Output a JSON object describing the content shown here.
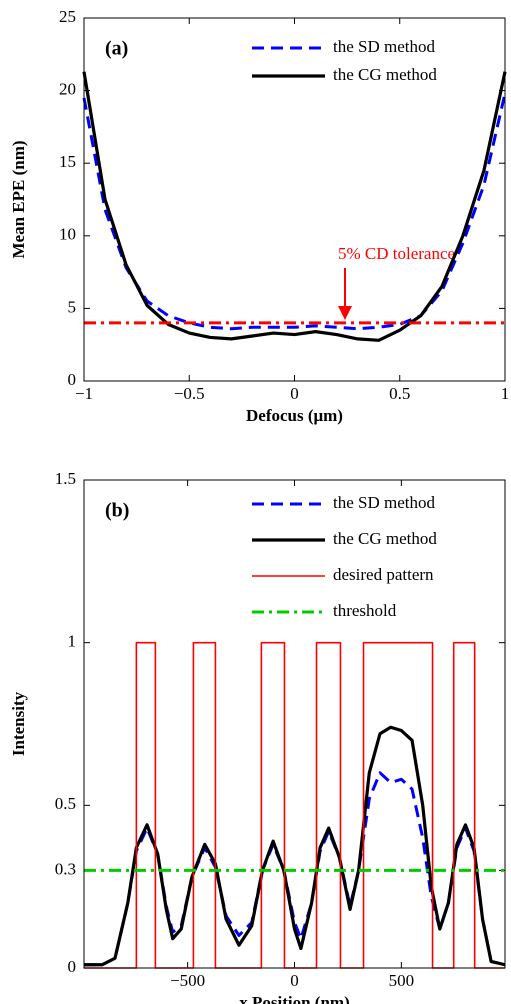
{
  "chart_data": [
    {
      "type": "line",
      "panel_label": "(a)",
      "xlabel": "Defocus (μm)",
      "ylabel": "Mean EPE (nm)",
      "x": [
        -1,
        -0.9,
        -0.8,
        -0.7,
        -0.6,
        -0.5,
        -0.4,
        -0.3,
        -0.2,
        -0.1,
        0,
        0.1,
        0.2,
        0.3,
        0.4,
        0.5,
        0.6,
        0.7,
        0.8,
        0.9,
        1
      ],
      "series": [
        {
          "name": "the SD method",
          "color": "#0000ff",
          "style": "dashed",
          "values": [
            19.5,
            11.8,
            7.8,
            5.5,
            4.5,
            4.0,
            3.7,
            3.6,
            3.7,
            3.7,
            3.7,
            3.8,
            3.7,
            3.6,
            3.7,
            3.9,
            4.5,
            6.2,
            9.5,
            13.5,
            19.8
          ]
        },
        {
          "name": "the CG method",
          "color": "#000000",
          "style": "solid",
          "values": [
            21.3,
            12.5,
            8.0,
            5.2,
            3.9,
            3.3,
            3.0,
            2.9,
            3.1,
            3.3,
            3.2,
            3.4,
            3.2,
            2.9,
            2.8,
            3.5,
            4.5,
            6.5,
            10,
            14.5,
            21.3
          ]
        }
      ],
      "reference_line": {
        "value": 4,
        "color": "#ff0000",
        "style": "dashdot"
      },
      "annotation": "5% CD tolerance",
      "xlim": [
        -1,
        1
      ],
      "ylim": [
        0,
        25
      ],
      "xticks": [
        {
          "value": -1,
          "label": "−1"
        },
        {
          "value": -0.5,
          "label": "−0.5"
        },
        0,
        0.5,
        1
      ],
      "yticks": [
        0,
        5,
        10,
        15,
        20,
        25
      ]
    },
    {
      "type": "line",
      "panel_label": "(b)",
      "xlabel": "x Position (nm)",
      "ylabel": "Intensity",
      "x": [
        -985,
        -900,
        -840,
        -780,
        -740,
        -690,
        -640,
        -600,
        -570,
        -530,
        -480,
        -420,
        -370,
        -320,
        -260,
        -200,
        -150,
        -100,
        -50,
        0,
        30,
        80,
        120,
        160,
        210,
        260,
        300,
        350,
        400,
        450,
        500,
        550,
        600,
        640,
        680,
        720,
        760,
        800,
        840,
        880,
        920,
        985
      ],
      "series": [
        {
          "name": "the SD method",
          "color": "#0000ff",
          "style": "dashed",
          "values": [
            0.01,
            0.01,
            0.03,
            0.2,
            0.36,
            0.43,
            0.35,
            0.19,
            0.11,
            0.13,
            0.28,
            0.37,
            0.31,
            0.16,
            0.1,
            0.14,
            0.3,
            0.38,
            0.3,
            0.14,
            0.09,
            0.2,
            0.36,
            0.42,
            0.34,
            0.19,
            0.3,
            0.52,
            0.6,
            0.57,
            0.58,
            0.55,
            0.4,
            0.22,
            0.12,
            0.2,
            0.37,
            0.43,
            0.36,
            0.15,
            0.02,
            0.01
          ]
        },
        {
          "name": "the CG method",
          "color": "#000000",
          "style": "solid",
          "values": [
            0.01,
            0.01,
            0.03,
            0.2,
            0.37,
            0.44,
            0.35,
            0.18,
            0.09,
            0.12,
            0.28,
            0.38,
            0.32,
            0.15,
            0.07,
            0.13,
            0.3,
            0.39,
            0.3,
            0.12,
            0.06,
            0.2,
            0.37,
            0.43,
            0.34,
            0.18,
            0.3,
            0.6,
            0.72,
            0.74,
            0.73,
            0.7,
            0.5,
            0.25,
            0.12,
            0.2,
            0.38,
            0.44,
            0.37,
            0.15,
            0.02,
            0.01
          ]
        },
        {
          "name": "desired pattern",
          "color": "#ff0000",
          "style": "thin",
          "x": [
            -985,
            -740,
            -740,
            -651,
            -651,
            -473,
            -473,
            -370,
            -370,
            -155,
            -155,
            -47,
            -47,
            103,
            103,
            215,
            215,
            323,
            323,
            646,
            646,
            745,
            745,
            843,
            843,
            985
          ],
          "values": [
            0,
            0,
            1,
            1,
            0,
            0,
            1,
            1,
            0,
            0,
            1,
            1,
            0,
            0,
            1,
            1,
            0,
            0,
            1,
            1,
            0,
            0,
            1,
            1,
            0,
            0
          ]
        }
      ],
      "threshold": {
        "name": "threshold",
        "value": 0.3,
        "color": "#00cc00",
        "style": "dashdot"
      },
      "xlim": [
        -985,
        985
      ],
      "ylim": [
        0,
        1.5
      ],
      "xticks": [
        {
          "value": -500,
          "label": "−500"
        },
        0,
        500
      ],
      "yticks": [
        0,
        0.3,
        0.5,
        1,
        1.5
      ]
    }
  ]
}
